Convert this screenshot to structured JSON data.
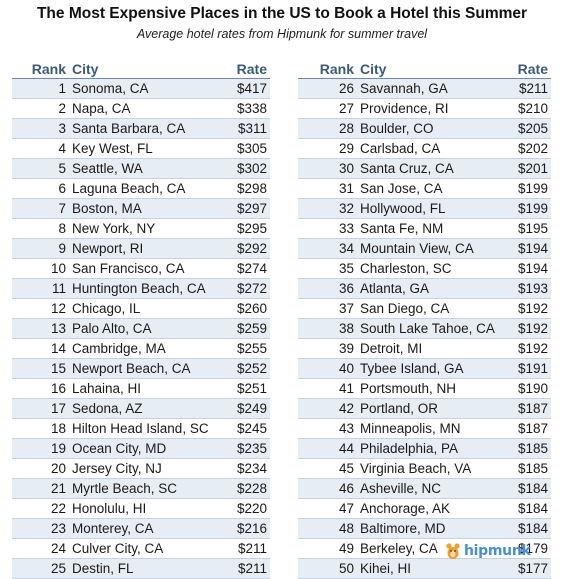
{
  "chart_data": {
    "type": "table",
    "title": "The Most Expensive Places in the US to Book a Hotel this Summer",
    "subtitle": "Average hotel rates from Hipmunk for summer travel",
    "columns": [
      "Rank",
      "City",
      "Rate"
    ],
    "rows": [
      {
        "rank": "1",
        "city": "Sonoma, CA",
        "rate": "$417"
      },
      {
        "rank": "2",
        "city": "Napa, CA",
        "rate": "$338"
      },
      {
        "rank": "3",
        "city": "Santa Barbara, CA",
        "rate": "$311"
      },
      {
        "rank": "4",
        "city": "Key West, FL",
        "rate": "$305"
      },
      {
        "rank": "5",
        "city": "Seattle, WA",
        "rate": "$302"
      },
      {
        "rank": "6",
        "city": "Laguna Beach, CA",
        "rate": "$298"
      },
      {
        "rank": "7",
        "city": "Boston, MA",
        "rate": "$297"
      },
      {
        "rank": "8",
        "city": "New York, NY",
        "rate": "$295"
      },
      {
        "rank": "9",
        "city": "Newport, RI",
        "rate": "$292"
      },
      {
        "rank": "10",
        "city": "San Francisco, CA",
        "rate": "$274"
      },
      {
        "rank": "11",
        "city": "Huntington Beach, CA",
        "rate": "$272"
      },
      {
        "rank": "12",
        "city": "Chicago, IL",
        "rate": "$260"
      },
      {
        "rank": "13",
        "city": "Palo Alto, CA",
        "rate": "$259"
      },
      {
        "rank": "14",
        "city": "Cambridge, MA",
        "rate": "$255"
      },
      {
        "rank": "15",
        "city": "Newport Beach, CA",
        "rate": "$252"
      },
      {
        "rank": "16",
        "city": "Lahaina, HI",
        "rate": "$251"
      },
      {
        "rank": "17",
        "city": "Sedona, AZ",
        "rate": "$249"
      },
      {
        "rank": "18",
        "city": "Hilton Head Island, SC",
        "rate": "$245"
      },
      {
        "rank": "19",
        "city": "Ocean City, MD",
        "rate": "$235"
      },
      {
        "rank": "20",
        "city": "Jersey City, NJ",
        "rate": "$234"
      },
      {
        "rank": "21",
        "city": "Myrtle Beach, SC",
        "rate": "$228"
      },
      {
        "rank": "22",
        "city": "Honolulu, HI",
        "rate": "$220"
      },
      {
        "rank": "23",
        "city": "Monterey, CA",
        "rate": "$216"
      },
      {
        "rank": "24",
        "city": "Culver City, CA",
        "rate": "$211"
      },
      {
        "rank": "25",
        "city": "Destin, FL",
        "rate": "$211"
      },
      {
        "rank": "26",
        "city": "Savannah, GA",
        "rate": "$211"
      },
      {
        "rank": "27",
        "city": "Providence, RI",
        "rate": "$210"
      },
      {
        "rank": "28",
        "city": "Boulder, CO",
        "rate": "$205"
      },
      {
        "rank": "29",
        "city": "Carlsbad, CA",
        "rate": "$202"
      },
      {
        "rank": "30",
        "city": "Santa Cruz, CA",
        "rate": "$201"
      },
      {
        "rank": "31",
        "city": "San Jose, CA",
        "rate": "$199"
      },
      {
        "rank": "32",
        "city": "Hollywood, FL",
        "rate": "$199"
      },
      {
        "rank": "33",
        "city": "Santa Fe, NM",
        "rate": "$195"
      },
      {
        "rank": "34",
        "city": "Mountain View, CA",
        "rate": "$194"
      },
      {
        "rank": "35",
        "city": "Charleston, SC",
        "rate": "$194"
      },
      {
        "rank": "36",
        "city": "Atlanta, GA",
        "rate": "$193"
      },
      {
        "rank": "37",
        "city": "San Diego, CA",
        "rate": "$192"
      },
      {
        "rank": "38",
        "city": "South Lake Tahoe, CA",
        "rate": "$192"
      },
      {
        "rank": "39",
        "city": "Detroit, MI",
        "rate": "$192"
      },
      {
        "rank": "40",
        "city": "Tybee Island, GA",
        "rate": "$191"
      },
      {
        "rank": "41",
        "city": "Portsmouth, NH",
        "rate": "$190"
      },
      {
        "rank": "42",
        "city": "Portland, OR",
        "rate": "$187"
      },
      {
        "rank": "43",
        "city": "Minneapolis, MN",
        "rate": "$187"
      },
      {
        "rank": "44",
        "city": "Philadelphia, PA",
        "rate": "$185"
      },
      {
        "rank": "45",
        "city": "Virginia Beach, VA",
        "rate": "$185"
      },
      {
        "rank": "46",
        "city": "Asheville, NC",
        "rate": "$184"
      },
      {
        "rank": "47",
        "city": "Anchorage, AK",
        "rate": "$184"
      },
      {
        "rank": "48",
        "city": "Baltimore, MD",
        "rate": "$184"
      },
      {
        "rank": "49",
        "city": "Berkeley, CA",
        "rate": "$179"
      },
      {
        "rank": "50",
        "city": "Kihei, HI",
        "rate": "$177"
      }
    ]
  },
  "branding": {
    "logo_text": "hipmunk",
    "logo_icon": "hipmunk-chipmunk-icon"
  },
  "colors": {
    "header_text": "#3d5a7a",
    "stripe": "#e7edf5",
    "logo": "#4a8fd6",
    "logo_accent": "#f39c2e"
  }
}
